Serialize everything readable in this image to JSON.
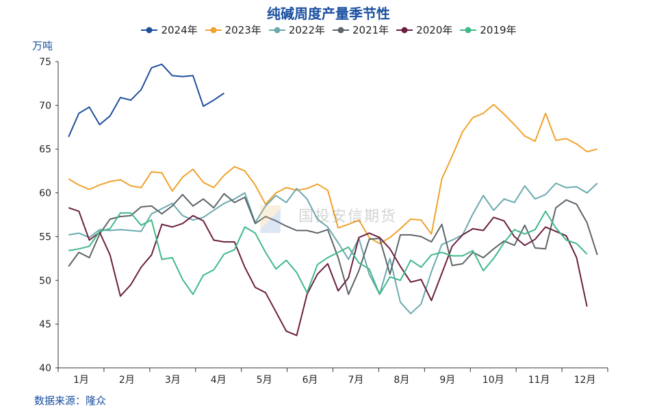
{
  "chart_data": {
    "type": "line",
    "title": "纯碱周度产量季节性",
    "ylabel": "万吨",
    "source": "数据来源：隆众",
    "watermark": "国投安信期货",
    "ylim": [
      40,
      75
    ],
    "yticks": [
      "40",
      "45",
      "50",
      "55",
      "60",
      "65",
      "70",
      "75"
    ],
    "xlim": [
      0,
      53
    ],
    "x_tick_labels": [
      "1月",
      "2月",
      "3月",
      "4月",
      "5月",
      "6月",
      "7月",
      "8月",
      "9月",
      "10月",
      "11月",
      "12月"
    ],
    "legend_position": "top-center",
    "grid": false,
    "series": [
      {
        "name": "2024年",
        "color": "#1f4e9c",
        "values": [
          66.4,
          69.1,
          69.8,
          67.8,
          68.8,
          70.9,
          70.6,
          71.8,
          74.3,
          74.7,
          73.4,
          73.3,
          73.4,
          69.9,
          70.6,
          71.4
        ]
      },
      {
        "name": "2023年",
        "color": "#f0a22c",
        "values": [
          61.6,
          60.9,
          60.4,
          60.9,
          61.3,
          61.5,
          60.8,
          60.6,
          62.4,
          62.3,
          60.2,
          61.8,
          62.7,
          61.2,
          60.6,
          62.0,
          63.0,
          62.5,
          60.9,
          58.7,
          60.0,
          60.6,
          60.3,
          60.5,
          61.0,
          60.3,
          56.0,
          56.4,
          56.9,
          54.9,
          54.2,
          54.9,
          55.9,
          57.0,
          56.9,
          55.3,
          61.6,
          64.2,
          67.0,
          68.6,
          69.1,
          70.1,
          69.0,
          67.8,
          66.5,
          65.9,
          69.1,
          66.0,
          66.2,
          65.6,
          64.7,
          65.0
        ]
      },
      {
        "name": "2022年",
        "color": "#6aa9ae",
        "values": [
          55.2,
          55.4,
          54.9,
          55.8,
          55.7,
          55.8,
          55.7,
          55.6,
          57.6,
          58.2,
          58.8,
          57.4,
          56.9,
          57.2,
          58.0,
          58.8,
          59.3,
          60.0,
          56.6,
          58.5,
          59.7,
          58.9,
          60.5,
          59.3,
          57.0,
          56.1,
          54.3,
          52.4,
          54.8,
          50.7,
          48.4,
          52.5,
          47.5,
          46.2,
          47.3,
          51.0,
          54.1,
          54.6,
          55.2,
          57.6,
          59.7,
          58.0,
          59.3,
          58.9,
          60.8,
          59.3,
          59.8,
          61.1,
          60.6,
          60.7,
          60.0,
          61.1
        ]
      },
      {
        "name": "2021年",
        "color": "#5d6369",
        "values": [
          51.6,
          53.2,
          52.6,
          55.3,
          57.0,
          57.3,
          57.4,
          58.4,
          58.5,
          57.6,
          58.5,
          59.8,
          58.5,
          59.3,
          58.3,
          59.9,
          58.9,
          59.5,
          56.5,
          57.3,
          56.8,
          56.2,
          55.7,
          55.7,
          55.4,
          55.8,
          52.6,
          48.4,
          51.1,
          54.7,
          54.8,
          50.7,
          55.2,
          55.2,
          55.0,
          54.4,
          56.4,
          51.7,
          51.9,
          53.2,
          52.6,
          53.6,
          54.5,
          54.0,
          56.3,
          53.7,
          53.6,
          58.3,
          59.2,
          58.7,
          56.6,
          52.9
        ]
      },
      {
        "name": "2020年",
        "color": "#6b1f3f",
        "values": [
          58.3,
          57.9,
          54.6,
          55.5,
          52.9,
          48.2,
          49.5,
          51.5,
          52.9,
          56.4,
          56.1,
          56.5,
          57.4,
          56.8,
          54.6,
          54.4,
          54.4,
          51.5,
          49.2,
          48.6,
          46.4,
          44.2,
          43.7,
          48.4,
          50.7,
          51.9,
          48.8,
          50.3,
          54.9,
          55.4,
          54.9,
          53.6,
          51.6,
          49.8,
          50.1,
          47.7,
          50.8,
          53.9,
          55.2,
          55.9,
          55.7,
          57.2,
          56.8,
          55.0,
          54.0,
          54.7,
          56.1,
          55.6,
          55.1,
          52.6,
          47.0
        ]
      },
      {
        "name": "2019年",
        "color": "#3fb98a",
        "values": [
          53.4,
          53.6,
          53.9,
          55.6,
          55.9,
          57.7,
          57.7,
          56.3,
          56.9,
          52.4,
          52.6,
          50.1,
          48.4,
          50.6,
          51.2,
          53.0,
          53.5,
          56.1,
          55.4,
          53.2,
          51.3,
          52.3,
          50.9,
          48.6,
          51.8,
          52.6,
          53.2,
          53.8,
          52.0,
          51.3,
          48.4,
          50.4,
          50.0,
          52.3,
          51.5,
          52.9,
          53.2,
          52.8,
          52.8,
          53.4,
          51.1,
          52.5,
          54.3,
          55.8,
          55.3,
          55.8,
          57.9,
          56.0,
          54.6,
          54.2,
          53.0
        ]
      }
    ]
  }
}
